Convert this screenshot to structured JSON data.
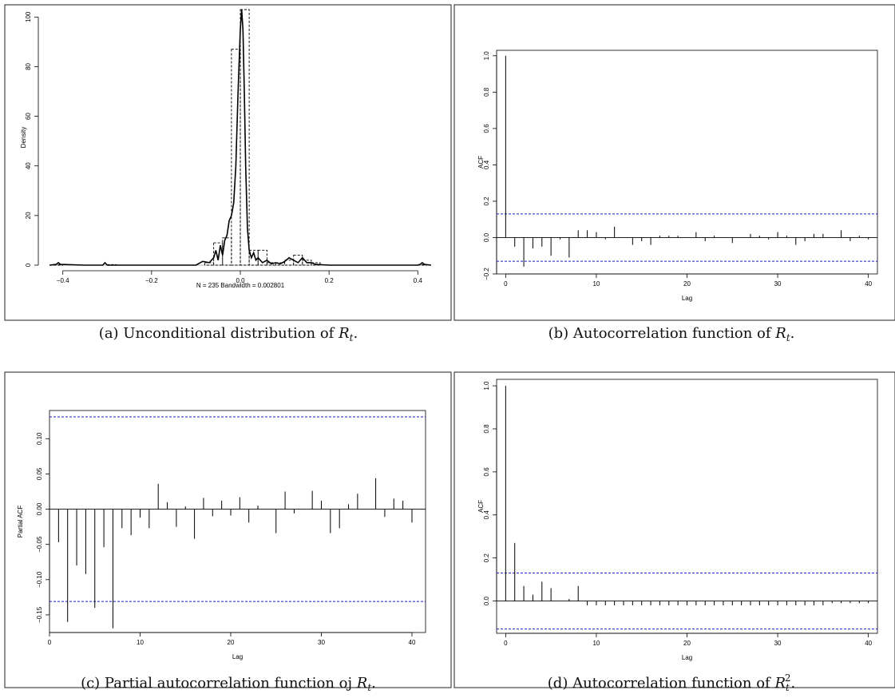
{
  "chart_data": [
    {
      "panel": "a",
      "type": "histogram",
      "caption": "(a) Unconditional distribution of R_t.",
      "xlabel": "N = 235   Bandwidth = 0.002801",
      "ylabel": "Density",
      "xlim": [
        -0.43,
        0.43
      ],
      "ylim": [
        0,
        103
      ],
      "xticks": [
        -0.4,
        -0.2,
        0.0,
        0.2,
        0.4
      ],
      "xtick_labels": [
        "−0.4",
        "−0.2",
        "0.0",
        "0.2",
        "0.4"
      ],
      "yticks": [
        0,
        20,
        40,
        60,
        80,
        100
      ],
      "ytick_labels": [
        "0",
        "20",
        "40",
        "60",
        "80",
        "100"
      ],
      "histogram": {
        "bin_width": 0.02,
        "bins": [
          {
            "x0": -0.42,
            "density": 0.2
          },
          {
            "x0": -0.3,
            "density": 0.2
          },
          {
            "x0": -0.08,
            "density": 1
          },
          {
            "x0": -0.06,
            "density": 9
          },
          {
            "x0": -0.04,
            "density": 11
          },
          {
            "x0": -0.02,
            "density": 87
          },
          {
            "x0": 0.0,
            "density": 103
          },
          {
            "x0": 0.02,
            "density": 6
          },
          {
            "x0": 0.04,
            "density": 6
          },
          {
            "x0": 0.06,
            "density": 1
          },
          {
            "x0": 0.08,
            "density": 1
          },
          {
            "x0": 0.1,
            "density": 2
          },
          {
            "x0": 0.12,
            "density": 4
          },
          {
            "x0": 0.14,
            "density": 2
          },
          {
            "x0": 0.16,
            "density": 1
          },
          {
            "x0": 0.4,
            "density": 0.2
          }
        ]
      },
      "density_curve": {
        "x": [
          -0.43,
          -0.415,
          -0.41,
          -0.405,
          -0.35,
          -0.31,
          -0.305,
          -0.3,
          -0.1,
          -0.085,
          -0.07,
          -0.06,
          -0.055,
          -0.05,
          -0.045,
          -0.04,
          -0.035,
          -0.03,
          -0.025,
          -0.02,
          -0.015,
          -0.01,
          -0.005,
          0.0,
          0.003,
          0.006,
          0.009,
          0.012,
          0.016,
          0.02,
          0.025,
          0.03,
          0.035,
          0.04,
          0.05,
          0.06,
          0.07,
          0.08,
          0.09,
          0.1,
          0.11,
          0.12,
          0.13,
          0.14,
          0.15,
          0.16,
          0.17,
          0.2,
          0.4,
          0.405,
          0.41,
          0.415,
          0.43
        ],
        "y": [
          0,
          0.3,
          1,
          0.3,
          0,
          0,
          1,
          0,
          0,
          1.5,
          1,
          3,
          6,
          2,
          8,
          4,
          10,
          12,
          18,
          20,
          25,
          40,
          70,
          95,
          103,
          95,
          70,
          40,
          15,
          6,
          3,
          5,
          2,
          3,
          1,
          2,
          0.5,
          1,
          0.5,
          1.5,
          3,
          2,
          1,
          3,
          1,
          1,
          0.3,
          0,
          0,
          0.3,
          1,
          0.3,
          0
        ]
      }
    },
    {
      "panel": "b",
      "type": "bar",
      "caption": "(b) Autocorrelation function of R_t.",
      "xlabel": "Lag",
      "ylabel": "ACF",
      "xlim": [
        -1,
        41
      ],
      "ylim": [
        -0.2,
        1.03
      ],
      "xticks": [
        0,
        10,
        20,
        30,
        40
      ],
      "xtick_labels": [
        "0",
        "10",
        "20",
        "30",
        "40"
      ],
      "yticks": [
        -0.2,
        0.0,
        0.2,
        0.4,
        0.6,
        0.8,
        1.0
      ],
      "ytick_labels": [
        "−0.2",
        "0.0",
        "0.2",
        "0.4",
        "0.6",
        "0.8",
        "1.0"
      ],
      "ci": 0.13,
      "lags": [
        0,
        1,
        2,
        3,
        4,
        5,
        6,
        7,
        8,
        9,
        10,
        11,
        12,
        13,
        14,
        15,
        16,
        17,
        18,
        19,
        20,
        21,
        22,
        23,
        24,
        25,
        26,
        27,
        28,
        29,
        30,
        31,
        32,
        33,
        34,
        35,
        36,
        37,
        38,
        39,
        40
      ],
      "values": [
        1.0,
        -0.05,
        -0.16,
        -0.06,
        -0.05,
        -0.1,
        -0.01,
        -0.11,
        0.04,
        0.04,
        0.03,
        -0.01,
        0.06,
        0.0,
        -0.04,
        -0.02,
        -0.04,
        0.01,
        0.01,
        0.01,
        0.0,
        0.03,
        -0.02,
        0.01,
        0.0,
        -0.03,
        0.0,
        0.02,
        0.01,
        -0.01,
        0.03,
        0.01,
        -0.04,
        -0.02,
        0.02,
        0.02,
        0.0,
        0.04,
        -0.02,
        0.01,
        -0.01
      ]
    },
    {
      "panel": "c",
      "type": "bar",
      "caption": "(c) Partial autocorrelation function oj R_t.",
      "xlabel": "Lag",
      "ylabel": "Partial ACF",
      "xlim": [
        0,
        41.5
      ],
      "ylim": [
        -0.175,
        0.14
      ],
      "xticks": [
        0,
        10,
        20,
        30,
        40
      ],
      "xtick_labels": [
        "0",
        "10",
        "20",
        "30",
        "40"
      ],
      "yticks": [
        -0.15,
        -0.1,
        -0.05,
        0.0,
        0.05,
        0.1
      ],
      "ytick_labels": [
        "−0.15",
        "−0.10",
        "−0.05",
        "0.00",
        "0.05",
        "0.10"
      ],
      "ci": 0.131,
      "lags": [
        1,
        2,
        3,
        4,
        5,
        6,
        7,
        8,
        9,
        10,
        11,
        12,
        13,
        14,
        15,
        16,
        17,
        18,
        19,
        20,
        21,
        22,
        23,
        24,
        25,
        26,
        27,
        28,
        29,
        30,
        31,
        32,
        33,
        34,
        35,
        36,
        37,
        38,
        39,
        40
      ],
      "values": [
        -0.047,
        -0.16,
        -0.08,
        -0.092,
        -0.14,
        -0.054,
        -0.169,
        -0.027,
        -0.037,
        -0.012,
        -0.027,
        0.036,
        0.01,
        -0.025,
        0.004,
        -0.042,
        0.016,
        -0.01,
        0.012,
        -0.009,
        0.017,
        -0.019,
        0.005,
        0.0,
        -0.034,
        0.025,
        -0.006,
        0.0,
        0.026,
        0.012,
        -0.034,
        -0.027,
        0.007,
        0.022,
        0.0,
        0.044,
        -0.011,
        0.015,
        0.012,
        -0.019
      ]
    },
    {
      "panel": "d",
      "type": "bar",
      "caption": "(d) Autocorrelation function of R_t^2.",
      "xlabel": "Lag",
      "ylabel": "ACF",
      "xlim": [
        -1,
        41
      ],
      "ylim": [
        -0.15,
        1.03
      ],
      "xticks": [
        0,
        10,
        20,
        30,
        40
      ],
      "xtick_labels": [
        "0",
        "10",
        "20",
        "30",
        "40"
      ],
      "yticks": [
        0.0,
        0.2,
        0.4,
        0.6,
        0.8,
        1.0
      ],
      "ytick_labels": [
        "0.0",
        "0.2",
        "0.4",
        "0.6",
        "0.8",
        "1.0"
      ],
      "ci": 0.13,
      "lags": [
        0,
        1,
        2,
        3,
        4,
        5,
        6,
        7,
        8,
        9,
        10,
        11,
        12,
        13,
        14,
        15,
        16,
        17,
        18,
        19,
        20,
        21,
        22,
        23,
        24,
        25,
        26,
        27,
        28,
        29,
        30,
        31,
        32,
        33,
        34,
        35,
        36,
        37,
        38,
        39,
        40
      ],
      "values": [
        1.0,
        0.27,
        0.07,
        0.03,
        0.09,
        0.06,
        0.0,
        0.01,
        0.07,
        -0.02,
        -0.02,
        -0.02,
        -0.02,
        -0.02,
        -0.02,
        -0.02,
        -0.02,
        -0.02,
        -0.02,
        -0.02,
        -0.02,
        -0.02,
        -0.02,
        -0.02,
        -0.02,
        -0.02,
        -0.02,
        -0.02,
        -0.02,
        -0.02,
        -0.02,
        -0.02,
        -0.02,
        -0.02,
        -0.02,
        -0.02,
        -0.01,
        -0.01,
        -0.01,
        -0.01,
        -0.01
      ]
    }
  ],
  "colors": {
    "ci_line": "#1a1acc",
    "bars": "#000000",
    "frame": "#222222"
  }
}
